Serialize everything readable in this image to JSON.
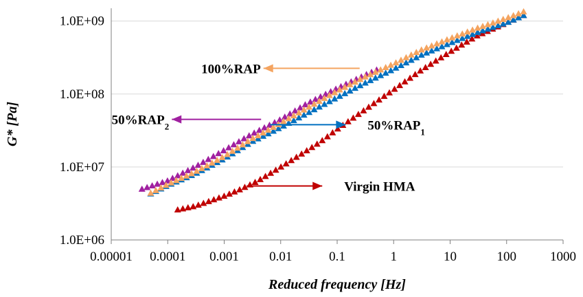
{
  "chart_data": {
    "type": "scatter",
    "title": "",
    "xlabel": "Reduced frequency [Hz]",
    "ylabel": "G* [Pa]",
    "xscale": "log",
    "yscale": "log",
    "xlim": [
      1e-05,
      1000
    ],
    "ylim": [
      1000000,
      1500000000
    ],
    "x_tick_labels": [
      "0.00001",
      "0.0001",
      "0.001",
      "0.01",
      "0.1",
      "1",
      "10",
      "100",
      "1000"
    ],
    "y_tick_labels": [
      "1.0E+06",
      "1.0E+07",
      "1.0E+08",
      "1.0E+09"
    ],
    "grid": "horizontal",
    "legend": "none",
    "series": [
      {
        "name": "Virgin HMA",
        "color": "#C00000",
        "marker": "triangle",
        "x_range": [
          0.00015,
          200
        ],
        "points": [
          [
            0.00015,
            2600000
          ],
          [
            0.0003,
            2900000
          ],
          [
            0.0006,
            3500000
          ],
          [
            0.001,
            4000000
          ],
          [
            0.002,
            5000000
          ],
          [
            0.004,
            6500000
          ],
          [
            0.01,
            10000000
          ],
          [
            0.02,
            14000000
          ],
          [
            0.05,
            22000000
          ],
          [
            0.1,
            33000000
          ],
          [
            0.3,
            60000000
          ],
          [
            1,
            115000000
          ],
          [
            3,
            210000000
          ],
          [
            10,
            380000000
          ],
          [
            30,
            630000000
          ],
          [
            100,
            950000000
          ],
          [
            200,
            1200000000
          ]
        ]
      },
      {
        "name": "50%RAP1",
        "color": "#0070C0",
        "marker": "triangle",
        "x_range": [
          5e-05,
          200
        ],
        "points": [
          [
            5e-05,
            4300000
          ],
          [
            0.0001,
            5600000
          ],
          [
            0.0003,
            8000000
          ],
          [
            0.001,
            13000000
          ],
          [
            0.003,
            22000000
          ],
          [
            0.01,
            35000000
          ],
          [
            0.03,
            55000000
          ],
          [
            0.1,
            90000000
          ],
          [
            0.3,
            140000000
          ],
          [
            1,
            220000000
          ],
          [
            3,
            340000000
          ],
          [
            10,
            500000000
          ],
          [
            30,
            700000000
          ],
          [
            100,
            950000000
          ],
          [
            200,
            1200000000
          ]
        ]
      },
      {
        "name": "50%RAP2",
        "color": "#A020A0",
        "marker": "triangle",
        "x_range": [
          3.5e-05,
          0.5
        ],
        "points": [
          [
            3.5e-05,
            5000000
          ],
          [
            0.0001,
            6500000
          ],
          [
            0.0003,
            10000000
          ],
          [
            0.001,
            17000000
          ],
          [
            0.003,
            28000000
          ],
          [
            0.01,
            45000000
          ],
          [
            0.03,
            75000000
          ],
          [
            0.1,
            120000000
          ],
          [
            0.3,
            180000000
          ],
          [
            0.5,
            215000000
          ]
        ]
      },
      {
        "name": "100%RAP",
        "color": "#F4A460",
        "marker": "triangle",
        "x_range": [
          5e-05,
          200
        ],
        "points": [
          [
            5e-05,
            4400000
          ],
          [
            0.0001,
            5800000
          ],
          [
            0.0003,
            8500000
          ],
          [
            0.001,
            14000000
          ],
          [
            0.003,
            24000000
          ],
          [
            0.01,
            40000000
          ],
          [
            0.03,
            65000000
          ],
          [
            0.1,
            110000000
          ],
          [
            0.3,
            170000000
          ],
          [
            1,
            260000000
          ],
          [
            3,
            400000000
          ],
          [
            10,
            580000000
          ],
          [
            30,
            800000000
          ],
          [
            100,
            1100000000
          ],
          [
            200,
            1350000000
          ]
        ]
      }
    ],
    "annotations": [
      {
        "base": "100%RAP",
        "sub": "",
        "color": "#F4A460",
        "direction": "left",
        "x": 0.25,
        "y": 225000000
      },
      {
        "base": "50%RAP",
        "sub": "2",
        "color": "#A020A0",
        "direction": "left",
        "x": 0.0045,
        "y": 45000000
      },
      {
        "base": "50%RAP",
        "sub": "1",
        "color": "#0070C0",
        "direction": "right",
        "x": 0.0065,
        "y": 38000000
      },
      {
        "base": "Virgin HMA",
        "sub": "",
        "color": "#C00000",
        "direction": "right",
        "x": 0.0025,
        "y": 5500000
      }
    ]
  }
}
